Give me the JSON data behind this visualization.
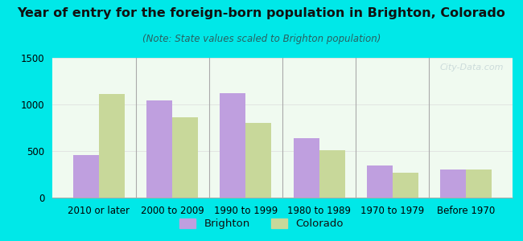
{
  "title": "Year of entry for the foreign-born population in Brighton, Colorado",
  "subtitle": "(Note: State values scaled to Brighton population)",
  "categories": [
    "2010 or later",
    "2000 to 2009",
    "1990 to 1999",
    "1980 to 1989",
    "1970 to 1979",
    "Before 1970"
  ],
  "brighton_values": [
    460,
    1040,
    1120,
    635,
    345,
    300
  ],
  "colorado_values": [
    1115,
    860,
    800,
    510,
    265,
    305
  ],
  "brighton_color": "#bf9fdf",
  "colorado_color": "#c8d89a",
  "background_outer": "#00e8e8",
  "background_inner": "#f0faf0",
  "title_color": "#1a1a2e",
  "subtitle_color": "#2a6060",
  "watermark_color": "#c8d8d8",
  "ylim": [
    0,
    1500
  ],
  "yticks": [
    0,
    500,
    1000,
    1500
  ],
  "bar_width": 0.35,
  "title_fontsize": 11.5,
  "subtitle_fontsize": 8.5,
  "tick_fontsize": 8.5,
  "legend_fontsize": 9.5
}
